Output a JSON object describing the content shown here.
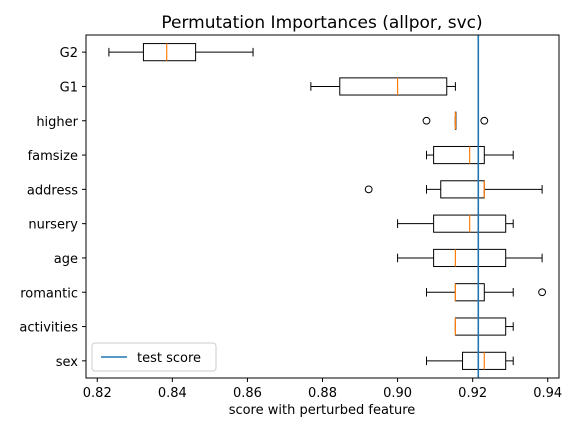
{
  "chart_data": {
    "type": "boxplot",
    "orientation": "horizontal",
    "title": "Permutation Importances (allpor, svc)",
    "xlabel": "score with perturbed feature",
    "ylabel": "",
    "xlim": [
      0.817,
      0.943
    ],
    "xticks": [
      0.82,
      0.84,
      0.86,
      0.88,
      0.9,
      0.92,
      0.94
    ],
    "xtick_labels": [
      "0.82",
      "0.84",
      "0.86",
      "0.88",
      "0.90",
      "0.92",
      "0.94"
    ],
    "grid": false,
    "legend": {
      "placement": "lower-left",
      "entries": [
        {
          "label": "test score",
          "color": "#1f77b4"
        }
      ]
    },
    "reference_line": {
      "label": "test score",
      "value": 0.9215,
      "color": "#1f77b4"
    },
    "colors": {
      "box": "#000000",
      "median": "#ff7f0e",
      "reference": "#1f77b4"
    },
    "features": [
      {
        "label": "G2",
        "whisker_low": 0.8231,
        "q1": 0.8323,
        "median": 0.8385,
        "q3": 0.8462,
        "whisker_high": 0.8615,
        "outliers": []
      },
      {
        "label": "G1",
        "whisker_low": 0.8769,
        "q1": 0.8846,
        "median": 0.9,
        "q3": 0.9131,
        "whisker_high": 0.9154,
        "outliers": []
      },
      {
        "label": "higher",
        "whisker_low": 0.9154,
        "q1": 0.9154,
        "median": 0.9154,
        "q3": 0.9154,
        "whisker_high": 0.9154,
        "outliers": [
          0.9077,
          0.9231
        ]
      },
      {
        "label": "famsize",
        "whisker_low": 0.9077,
        "q1": 0.9096,
        "median": 0.9192,
        "q3": 0.9231,
        "whisker_high": 0.9308,
        "outliers": []
      },
      {
        "label": "address",
        "whisker_low": 0.9077,
        "q1": 0.9115,
        "median": 0.9231,
        "q3": 0.9231,
        "whisker_high": 0.9385,
        "outliers": [
          0.8923
        ]
      },
      {
        "label": "nursery",
        "whisker_low": 0.9,
        "q1": 0.9096,
        "median": 0.9192,
        "q3": 0.9288,
        "whisker_high": 0.9308,
        "outliers": []
      },
      {
        "label": "age",
        "whisker_low": 0.9,
        "q1": 0.9096,
        "median": 0.9154,
        "q3": 0.9288,
        "whisker_high": 0.9385,
        "outliers": []
      },
      {
        "label": "romantic",
        "whisker_low": 0.9077,
        "q1": 0.9154,
        "median": 0.9154,
        "q3": 0.9231,
        "whisker_high": 0.9308,
        "outliers": [
          0.9385
        ]
      },
      {
        "label": "activities",
        "whisker_low": 0.9154,
        "q1": 0.9154,
        "median": 0.9154,
        "q3": 0.9288,
        "whisker_high": 0.9308,
        "outliers": []
      },
      {
        "label": "sex",
        "whisker_low": 0.9077,
        "q1": 0.9173,
        "median": 0.9231,
        "q3": 0.9288,
        "whisker_high": 0.9308,
        "outliers": []
      }
    ]
  }
}
